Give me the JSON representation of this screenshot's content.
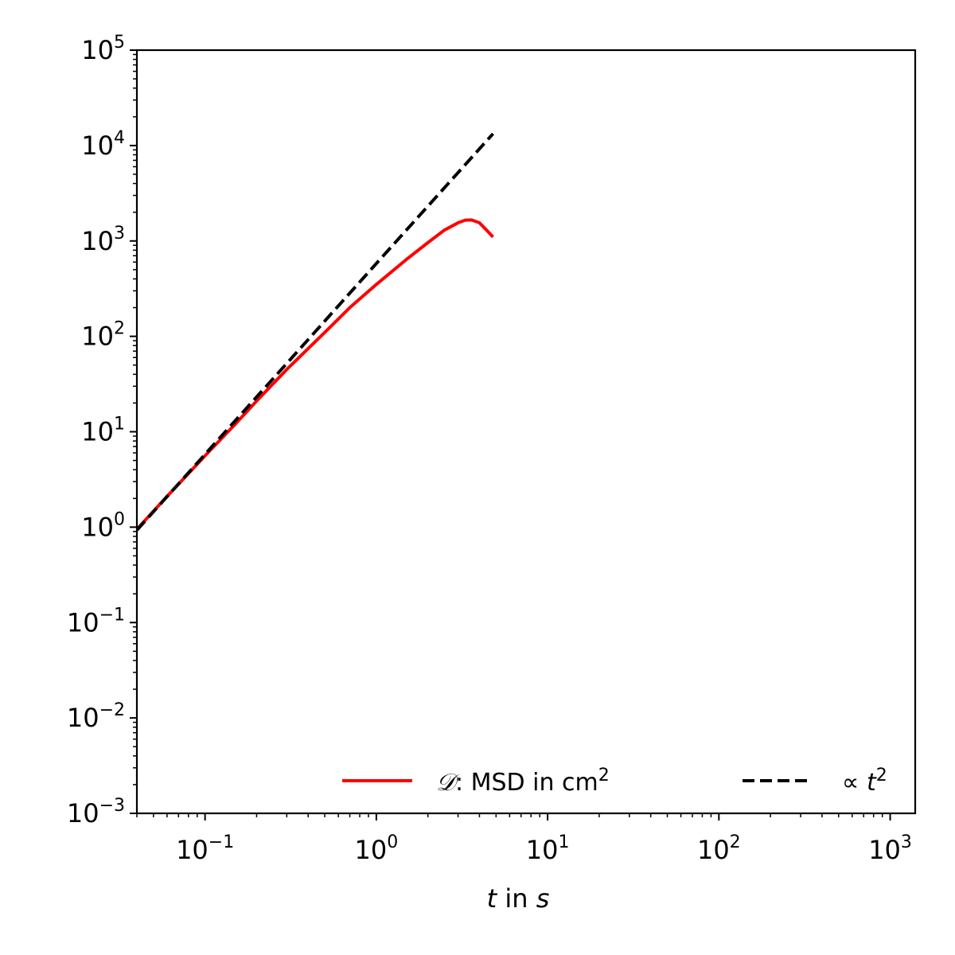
{
  "chart_data": {
    "type": "line",
    "xscale": "log",
    "yscale": "log",
    "xlim": [
      0.04,
      1400
    ],
    "ylim": [
      0.001,
      100000
    ],
    "xticks": [
      {
        "value": 0.1,
        "base": "10",
        "exp": "−1"
      },
      {
        "value": 1,
        "base": "10",
        "exp": "0"
      },
      {
        "value": 10,
        "base": "10",
        "exp": "1"
      },
      {
        "value": 100,
        "base": "10",
        "exp": "2"
      },
      {
        "value": 1000,
        "base": "10",
        "exp": "3"
      }
    ],
    "yticks": [
      {
        "value": 0.001,
        "base": "10",
        "exp": "−3"
      },
      {
        "value": 0.01,
        "base": "10",
        "exp": "−2"
      },
      {
        "value": 0.1,
        "base": "10",
        "exp": "−1"
      },
      {
        "value": 1,
        "base": "10",
        "exp": "0"
      },
      {
        "value": 10,
        "base": "10",
        "exp": "1"
      },
      {
        "value": 100,
        "base": "10",
        "exp": "2"
      },
      {
        "value": 1000,
        "base": "10",
        "exp": "3"
      },
      {
        "value": 10000,
        "base": "10",
        "exp": "4"
      },
      {
        "value": 100000,
        "base": "10",
        "exp": "5"
      }
    ],
    "xlabel": {
      "var": "t",
      "middle": " in ",
      "unit": "s"
    },
    "grid": false,
    "legend": {
      "placement": "bottom-right",
      "ncol": 2,
      "entries": [
        {
          "symbol": "𝒟",
          "text": ": MSD in cm",
          "sup": "2",
          "color": "#ff0000",
          "style": "solid"
        },
        {
          "prefix": "∝ ",
          "var": "t",
          "sup": "2",
          "color": "#000000",
          "style": "dashed"
        }
      ]
    },
    "series": [
      {
        "color": "#ff0000",
        "style": "solid",
        "x": [
          0.04,
          0.06,
          0.1,
          0.15,
          0.2,
          0.3,
          0.5,
          0.7,
          1.0,
          1.5,
          2.0,
          2.5,
          3.0,
          3.3,
          3.6,
          4.0,
          4.4,
          4.8
        ],
        "y": [
          0.95,
          2.1,
          5.6,
          12,
          21,
          45,
          110,
          200,
          350,
          640,
          960,
          1300,
          1550,
          1650,
          1660,
          1550,
          1300,
          1100
        ]
      },
      {
        "color": "#000000",
        "style": "dashed",
        "x": [
          0.04,
          0.1,
          0.3,
          1.0,
          3.0,
          4.8
        ],
        "y": [
          0.93,
          5.8,
          52,
          580,
          5200,
          13300
        ]
      }
    ]
  }
}
